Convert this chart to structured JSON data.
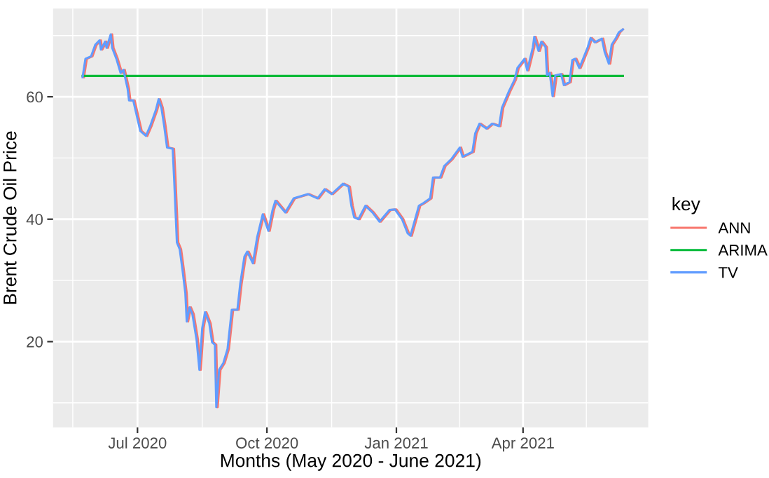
{
  "chart_data": {
    "type": "line",
    "xlabel": "Months (May 2020 - June 2021)",
    "ylabel": "Brent Crude Oil Price",
    "legend_title": "key",
    "legend": "right",
    "grid": true,
    "marker": "none",
    "line_style": "solid",
    "xlim": [
      "2020-05-02",
      "2021-06-29"
    ],
    "ylim": [
      6,
      74.4
    ],
    "xticks": [
      {
        "value": "2020-05-16",
        "label": null
      },
      {
        "value": "2020-07-01",
        "label": "Jul 2020"
      },
      {
        "value": "2020-08-16",
        "label": null
      },
      {
        "value": "2020-10-01",
        "label": "Oct 2020"
      },
      {
        "value": "2020-11-16",
        "label": null
      },
      {
        "value": "2021-01-01",
        "label": "Jan 2021"
      },
      {
        "value": "2021-02-15",
        "label": null
      },
      {
        "value": "2021-04-01",
        "label": "Apr 2021"
      },
      {
        "value": "2021-05-16",
        "label": null
      }
    ],
    "yticks": [
      {
        "value": 10,
        "label": null
      },
      20,
      {
        "value": 30,
        "label": null
      },
      40,
      {
        "value": 50,
        "label": null
      },
      60,
      {
        "value": 70,
        "label": null
      }
    ],
    "series": [
      {
        "name": "ANN",
        "color": "#f8766d",
        "x": [
          "2020-05-24",
          "2020-05-26",
          "2020-05-30",
          "2020-06-02",
          "2020-06-05",
          "2020-06-06",
          "2020-06-09",
          "2020-06-10",
          "2020-06-13",
          "2020-06-14",
          "2020-06-17",
          "2020-06-20",
          "2020-06-22",
          "2020-06-25",
          "2020-06-26",
          "2020-06-29",
          "2020-07-04",
          "2020-07-08",
          "2020-07-11",
          "2020-07-15",
          "2020-07-17",
          "2020-07-19",
          "2020-07-21",
          "2020-07-23",
          "2020-07-27",
          "2020-07-28",
          "2020-07-30",
          "2020-08-01",
          "2020-08-03",
          "2020-08-05",
          "2020-08-06",
          "2020-08-08",
          "2020-08-10",
          "2020-08-13",
          "2020-08-15",
          "2020-08-17",
          "2020-08-19",
          "2020-08-22",
          "2020-08-24",
          "2020-08-26",
          "2020-08-27",
          "2020-08-29",
          "2020-09-01",
          "2020-09-04",
          "2020-09-07",
          "2020-09-11",
          "2020-09-13",
          "2020-09-16",
          "2020-09-18",
          "2020-09-22",
          "2020-09-25",
          "2020-09-29",
          "2020-10-03",
          "2020-10-06",
          "2020-10-08",
          "2020-10-15",
          "2020-10-21",
          "2020-10-31",
          "2020-11-07",
          "2020-11-12",
          "2020-11-17",
          "2020-11-25",
          "2020-11-29",
          "2020-12-01",
          "2020-12-03",
          "2020-12-06",
          "2020-12-11",
          "2020-12-16",
          "2020-12-21",
          "2020-12-28",
          "2021-01-01",
          "2021-01-06",
          "2021-01-10",
          "2021-01-12",
          "2021-01-18",
          "2021-01-21",
          "2021-01-26",
          "2021-01-28",
          "2021-02-02",
          "2021-02-05",
          "2021-02-10",
          "2021-02-16",
          "2021-02-18",
          "2021-02-25",
          "2021-02-27",
          "2021-03-02",
          "2021-03-07",
          "2021-03-11",
          "2021-03-16",
          "2021-03-18",
          "2021-03-23",
          "2021-03-27",
          "2021-03-29",
          "2021-04-03",
          "2021-04-05",
          "2021-04-09",
          "2021-04-10",
          "2021-04-13",
          "2021-04-15",
          "2021-04-18",
          "2021-04-19",
          "2021-04-21",
          "2021-04-23",
          "2021-04-25",
          "2021-04-29",
          "2021-05-01",
          "2021-05-05",
          "2021-05-07",
          "2021-05-09",
          "2021-05-12",
          "2021-05-14",
          "2021-05-18",
          "2021-05-20",
          "2021-05-23",
          "2021-05-28",
          "2021-05-30",
          "2021-06-02",
          "2021-06-04",
          "2021-06-07",
          "2021-06-09",
          "2021-06-11"
        ],
        "values": [
          63.2,
          66.2,
          66.6,
          68.5,
          69.2,
          67.7,
          69.0,
          68.0,
          70.2,
          68.0,
          66.2,
          63.9,
          64.4,
          61.3,
          59.4,
          59.4,
          54.4,
          53.6,
          55.2,
          57.8,
          59.6,
          58.2,
          55.2,
          51.7,
          51.5,
          46.8,
          36.2,
          35.1,
          31.7,
          27.9,
          23.3,
          25.6,
          24.5,
          20.3,
          15.4,
          22.2,
          24.8,
          23.0,
          19.9,
          19.5,
          9.3,
          15.4,
          16.5,
          18.8,
          25.2,
          25.2,
          29.4,
          33.9,
          34.7,
          32.8,
          37.0,
          40.8,
          38.1,
          41.5,
          43.0,
          41.1,
          43.4,
          44.1,
          43.4,
          44.9,
          44.1,
          45.8,
          45.3,
          42.2,
          40.3,
          40.0,
          42.2,
          41.1,
          39.6,
          41.5,
          41.6,
          40.0,
          37.7,
          37.3,
          42.2,
          42.6,
          43.4,
          46.8,
          46.8,
          48.7,
          49.8,
          51.7,
          50.2,
          51.0,
          54.0,
          55.6,
          54.8,
          55.6,
          55.2,
          58.2,
          60.9,
          62.8,
          64.7,
          66.2,
          64.3,
          68.1,
          69.8,
          67.5,
          69.0,
          68.1,
          63.5,
          63.9,
          60.1,
          63.5,
          63.7,
          61.9,
          62.4,
          66.0,
          66.2,
          64.7,
          65.8,
          68.1,
          69.6,
          68.9,
          69.5,
          67.3,
          65.4,
          68.5,
          69.6,
          70.5,
          71.0
        ]
      },
      {
        "name": "ARIMA",
        "color": "#00ba38",
        "x": [
          "2020-05-23",
          "2021-06-11"
        ],
        "values": [
          63.4,
          63.4
        ]
      },
      {
        "name": "TV",
        "color": "#619cff",
        "x": [
          "2020-05-23",
          "2020-05-25",
          "2020-05-29",
          "2020-06-01",
          "2020-06-04",
          "2020-06-05",
          "2020-06-08",
          "2020-06-09",
          "2020-06-12",
          "2020-06-13",
          "2020-06-16",
          "2020-06-19",
          "2020-06-21",
          "2020-06-24",
          "2020-06-25",
          "2020-06-28",
          "2020-07-03",
          "2020-07-07",
          "2020-07-10",
          "2020-07-14",
          "2020-07-16",
          "2020-07-18",
          "2020-07-20",
          "2020-07-22",
          "2020-07-26",
          "2020-07-27",
          "2020-07-29",
          "2020-07-31",
          "2020-08-02",
          "2020-08-04",
          "2020-08-05",
          "2020-08-07",
          "2020-08-09",
          "2020-08-12",
          "2020-08-14",
          "2020-08-16",
          "2020-08-18",
          "2020-08-21",
          "2020-08-23",
          "2020-08-25",
          "2020-08-26",
          "2020-08-28",
          "2020-08-31",
          "2020-09-03",
          "2020-09-06",
          "2020-09-10",
          "2020-09-12",
          "2020-09-15",
          "2020-09-17",
          "2020-09-21",
          "2020-09-24",
          "2020-09-28",
          "2020-10-02",
          "2020-10-05",
          "2020-10-07",
          "2020-10-14",
          "2020-10-20",
          "2020-10-30",
          "2020-11-06",
          "2020-11-11",
          "2020-11-16",
          "2020-11-24",
          "2020-11-28",
          "2020-11-30",
          "2020-12-02",
          "2020-12-05",
          "2020-12-10",
          "2020-12-15",
          "2020-12-20",
          "2020-12-27",
          "2020-12-31",
          "2021-01-05",
          "2021-01-09",
          "2021-01-11",
          "2021-01-17",
          "2021-01-20",
          "2021-01-25",
          "2021-01-27",
          "2021-02-01",
          "2021-02-04",
          "2021-02-09",
          "2021-02-15",
          "2021-02-17",
          "2021-02-24",
          "2021-02-26",
          "2021-03-01",
          "2021-03-06",
          "2021-03-10",
          "2021-03-15",
          "2021-03-17",
          "2021-03-22",
          "2021-03-26",
          "2021-03-28",
          "2021-04-02",
          "2021-04-04",
          "2021-04-08",
          "2021-04-09",
          "2021-04-12",
          "2021-04-14",
          "2021-04-17",
          "2021-04-18",
          "2021-04-20",
          "2021-04-22",
          "2021-04-24",
          "2021-04-28",
          "2021-04-30",
          "2021-05-04",
          "2021-05-06",
          "2021-05-08",
          "2021-05-11",
          "2021-05-13",
          "2021-05-17",
          "2021-05-19",
          "2021-05-22",
          "2021-05-27",
          "2021-05-29",
          "2021-06-01",
          "2021-06-03",
          "2021-06-06",
          "2021-06-08",
          "2021-06-11"
        ],
        "values": [
          63.2,
          66.2,
          66.6,
          68.5,
          69.2,
          67.7,
          69.0,
          68.0,
          70.2,
          68.0,
          66.2,
          63.9,
          64.4,
          61.3,
          59.4,
          59.4,
          54.4,
          53.6,
          55.2,
          57.8,
          59.6,
          58.2,
          55.2,
          51.7,
          51.5,
          46.8,
          36.2,
          35.1,
          31.7,
          27.9,
          23.3,
          25.6,
          24.5,
          20.3,
          15.4,
          22.2,
          24.8,
          23.0,
          19.9,
          19.5,
          9.3,
          15.4,
          16.5,
          18.8,
          25.2,
          25.2,
          29.4,
          33.9,
          34.7,
          32.8,
          37.0,
          40.8,
          38.1,
          41.5,
          43.0,
          41.1,
          43.4,
          44.1,
          43.4,
          44.9,
          44.1,
          45.8,
          45.3,
          42.2,
          40.3,
          40.0,
          42.2,
          41.1,
          39.6,
          41.5,
          41.6,
          40.0,
          37.7,
          37.3,
          42.2,
          42.6,
          43.4,
          46.8,
          46.8,
          48.7,
          49.8,
          51.7,
          50.2,
          51.0,
          54.0,
          55.6,
          54.8,
          55.6,
          55.2,
          58.2,
          60.9,
          62.8,
          64.7,
          66.2,
          64.3,
          68.1,
          69.8,
          67.5,
          69.0,
          68.1,
          63.5,
          63.9,
          60.1,
          63.5,
          63.7,
          61.9,
          62.4,
          66.0,
          66.2,
          64.7,
          65.8,
          68.1,
          69.6,
          68.9,
          69.5,
          67.3,
          65.4,
          68.5,
          69.6,
          70.5,
          71.0
        ]
      }
    ]
  }
}
